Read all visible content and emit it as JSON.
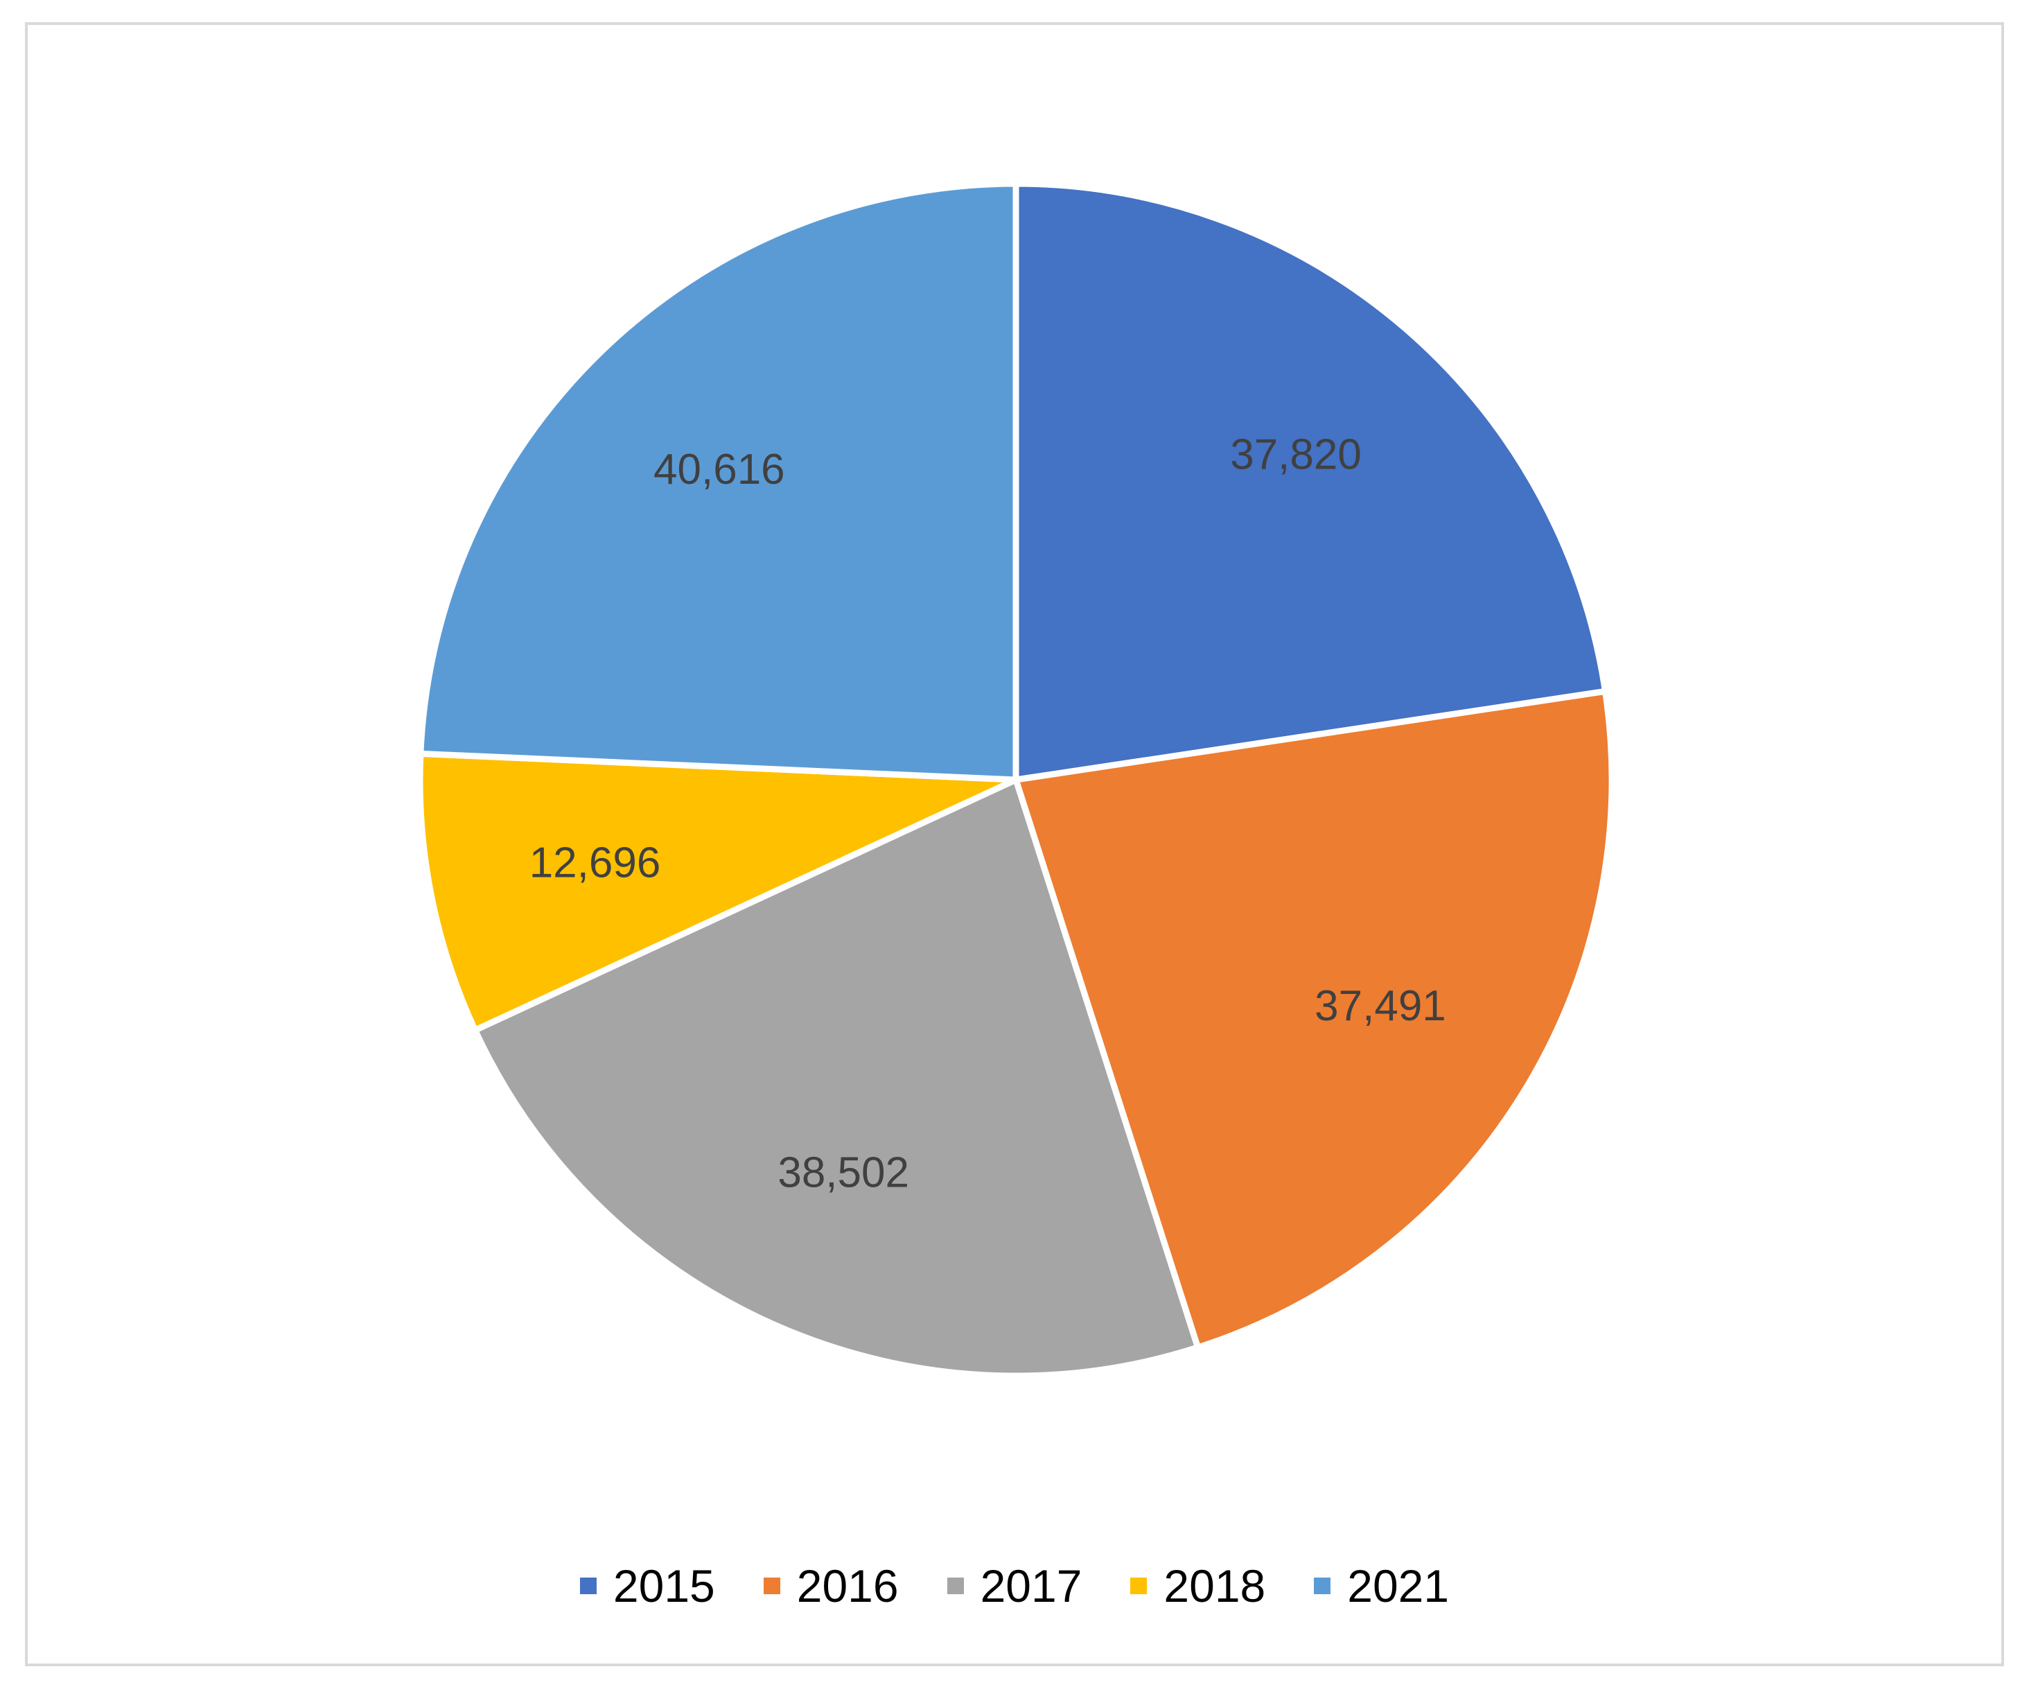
{
  "chart_data": {
    "type": "pie",
    "title": "",
    "categories": [
      "2015",
      "2016",
      "2017",
      "2018",
      "2021"
    ],
    "values": [
      37820,
      37491,
      38502,
      12696,
      40616
    ],
    "value_labels": [
      "37,820",
      "37,491",
      "38,502",
      "12,696",
      "40,616"
    ],
    "colors": [
      "#4472C4",
      "#ED7D31",
      "#A5A5A5",
      "#FFC000",
      "#5B9BD5"
    ],
    "start_angle": "12 o'clock",
    "direction": "clockwise",
    "data_labels": "inside",
    "legend_position": "bottom"
  }
}
